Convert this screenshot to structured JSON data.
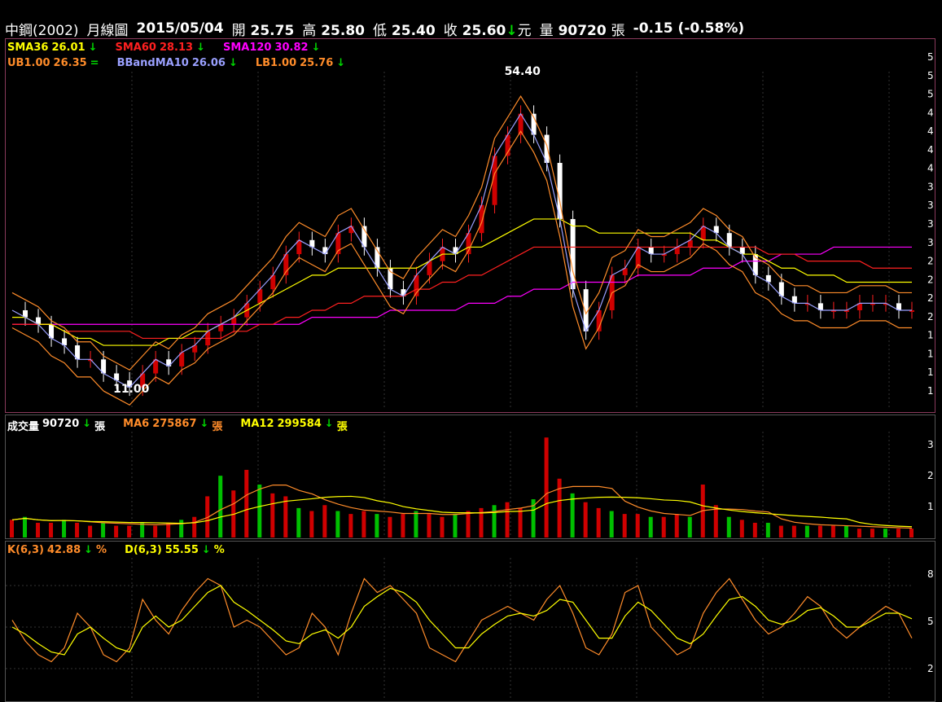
{
  "header": {
    "symbol": "中鋼(2002)",
    "period": "月線圖",
    "date": "2015/05/04",
    "open_label": "開",
    "open": "25.75",
    "high_label": "高",
    "high": "25.80",
    "low_label": "低",
    "low": "25.40",
    "close_label": "收",
    "close": "25.60",
    "arrow": "↓",
    "unit": "元",
    "volume_label": "量",
    "volume": "90720",
    "volume_unit": "張",
    "change": "-0.15 (-0.58%)"
  },
  "price_legend": {
    "row1": [
      {
        "label": "SMA36",
        "value": "26.01",
        "arrow": "↓",
        "color": "#ffff00"
      },
      {
        "label": "SMA60",
        "value": "28.13",
        "arrow": "↓",
        "color": "#ff2020"
      },
      {
        "label": "SMA120",
        "value": "30.82",
        "arrow": "↓",
        "color": "#ff00ff"
      }
    ],
    "row2": [
      {
        "label": "UB1.00",
        "value": "26.35",
        "arrow": "=",
        "color": "#ff8c2a"
      },
      {
        "label": "BBandMA10",
        "value": "26.06",
        "arrow": "↓",
        "color": "#9aa0ff"
      },
      {
        "label": "LB1.00",
        "value": "25.76",
        "arrow": "↓",
        "color": "#ff8c2a"
      }
    ]
  },
  "volume_legend": [
    {
      "label": "成交量",
      "value": "90720",
      "arrow": "↓",
      "unit": "張",
      "color": "#ffffff"
    },
    {
      "label": "MA6",
      "value": "275867",
      "arrow": "↓",
      "unit": "張",
      "color": "#ff8c2a"
    },
    {
      "label": "MA12",
      "value": "299584",
      "arrow": "↓",
      "unit": "張",
      "color": "#ffff00"
    }
  ],
  "kd_legend": [
    {
      "label": "K(6,3)",
      "value": "42.88",
      "arrow": "↓",
      "unit": "%",
      "color": "#ff8c2a"
    },
    {
      "label": "D(6,3)",
      "value": "55.55",
      "arrow": "↓",
      "unit": "%",
      "color": "#ffff00"
    }
  ],
  "chart_data": [
    {
      "type": "candlestick",
      "name": "price",
      "max_label": "54.40",
      "min_label": "11.00",
      "ylim": [
        9,
        56
      ],
      "right_axis_ticks": [
        "5",
        "5",
        "5",
        "4",
        "4",
        "4",
        "4",
        "3",
        "3",
        "3",
        "3",
        "2",
        "2",
        "2",
        "2",
        "1",
        "1",
        "1",
        "1"
      ],
      "close_path": [
        22,
        21,
        20,
        18,
        17,
        15,
        15,
        13,
        12,
        11,
        13,
        15,
        14,
        16,
        17,
        19,
        20,
        21,
        23,
        25,
        27,
        30,
        32,
        31,
        30,
        33,
        34,
        31,
        28,
        25,
        24,
        27,
        29,
        31,
        30,
        33,
        37,
        44,
        47,
        50,
        47,
        43,
        35,
        25,
        19,
        22,
        27,
        28,
        31,
        30,
        30,
        31,
        32,
        34,
        33,
        31,
        30,
        27,
        26,
        24,
        23,
        23,
        22,
        22,
        22,
        23,
        23,
        23,
        22,
        22
      ],
      "sma36_path": [
        21,
        21,
        20,
        20,
        19,
        18,
        18,
        17,
        17,
        17,
        17,
        17,
        18,
        18,
        19,
        19,
        20,
        21,
        22,
        23,
        24,
        25,
        26,
        27,
        27,
        28,
        28,
        28,
        28,
        28,
        28,
        28,
        29,
        30,
        30,
        31,
        31,
        32,
        33,
        34,
        35,
        35,
        35,
        34,
        34,
        33,
        33,
        33,
        33,
        33,
        33,
        33,
        33,
        32,
        32,
        31,
        30,
        30,
        29,
        28,
        28,
        27,
        27,
        27,
        26,
        26,
        26,
        26,
        26,
        26
      ],
      "sma60_path": [
        20,
        20,
        20,
        20,
        19,
        19,
        19,
        19,
        19,
        19,
        18,
        18,
        18,
        18,
        18,
        18,
        18,
        19,
        19,
        20,
        20,
        21,
        21,
        22,
        22,
        23,
        23,
        24,
        24,
        24,
        24,
        25,
        25,
        26,
        26,
        27,
        27,
        28,
        29,
        30,
        31,
        31,
        31,
        31,
        31,
        31,
        31,
        31,
        31,
        31,
        31,
        31,
        31,
        31,
        31,
        31,
        31,
        31,
        30,
        30,
        30,
        29,
        29,
        29,
        29,
        29,
        28,
        28,
        28,
        28
      ],
      "sma120_path": [
        20,
        20,
        20,
        20,
        20,
        20,
        20,
        20,
        20,
        20,
        20,
        20,
        20,
        20,
        20,
        20,
        20,
        20,
        20,
        20,
        20,
        20,
        20,
        21,
        21,
        21,
        21,
        21,
        21,
        22,
        22,
        22,
        22,
        22,
        22,
        23,
        23,
        23,
        24,
        24,
        25,
        25,
        25,
        26,
        26,
        26,
        26,
        26,
        27,
        27,
        27,
        27,
        27,
        28,
        28,
        28,
        29,
        29,
        29,
        30,
        30,
        30,
        30,
        31,
        31,
        31,
        31,
        31,
        31,
        31
      ]
    },
    {
      "type": "bar",
      "name": "volume",
      "right_axis_ticks": [
        "3",
        "2",
        "1"
      ],
      "values": [
        0.6,
        0.7,
        0.5,
        0.5,
        0.6,
        0.5,
        0.4,
        0.5,
        0.4,
        0.4,
        0.5,
        0.4,
        0.5,
        0.6,
        0.7,
        1.4,
        2.1,
        1.6,
        2.3,
        1.8,
        1.5,
        1.4,
        1.0,
        0.9,
        1.1,
        0.9,
        0.8,
        0.9,
        0.8,
        0.7,
        0.8,
        0.9,
        0.8,
        0.7,
        0.8,
        0.9,
        1.0,
        1.1,
        1.2,
        1.0,
        1.3,
        3.4,
        2.0,
        1.5,
        1.2,
        1.0,
        0.9,
        0.8,
        0.8,
        0.7,
        0.7,
        0.8,
        0.7,
        1.8,
        1.1,
        0.7,
        0.6,
        0.5,
        0.5,
        0.4,
        0.4,
        0.4,
        0.4,
        0.4,
        0.4,
        0.3,
        0.3,
        0.3,
        0.3,
        0.3
      ]
    },
    {
      "type": "line",
      "name": "kd",
      "right_axis_ticks": [
        "8",
        "5",
        "2"
      ],
      "ylim": [
        0,
        100
      ],
      "series": [
        {
          "name": "K(6,3)",
          "values": [
            55,
            40,
            30,
            25,
            35,
            60,
            50,
            30,
            25,
            35,
            70,
            55,
            45,
            62,
            75,
            85,
            80,
            50,
            55,
            50,
            40,
            30,
            35,
            60,
            50,
            30,
            60,
            85,
            75,
            80,
            70,
            60,
            35,
            30,
            25,
            40,
            55,
            60,
            65,
            60,
            55,
            70,
            80,
            60,
            35,
            30,
            45,
            75,
            80,
            50,
            40,
            30,
            35,
            60,
            75,
            85,
            70,
            55,
            45,
            50,
            60,
            72,
            65,
            50,
            42,
            50,
            58,
            65,
            60,
            42
          ]
        },
        {
          "name": "D(6,3)",
          "values": [
            50,
            45,
            38,
            32,
            30,
            45,
            50,
            42,
            35,
            32,
            50,
            58,
            50,
            55,
            65,
            75,
            80,
            68,
            62,
            55,
            48,
            40,
            38,
            45,
            48,
            42,
            50,
            65,
            72,
            78,
            75,
            68,
            55,
            45,
            35,
            35,
            45,
            52,
            58,
            60,
            58,
            62,
            70,
            68,
            55,
            42,
            42,
            58,
            68,
            62,
            52,
            42,
            38,
            45,
            58,
            70,
            72,
            65,
            55,
            52,
            55,
            62,
            64,
            58,
            50,
            50,
            55,
            60,
            60,
            56
          ]
        }
      ]
    }
  ]
}
